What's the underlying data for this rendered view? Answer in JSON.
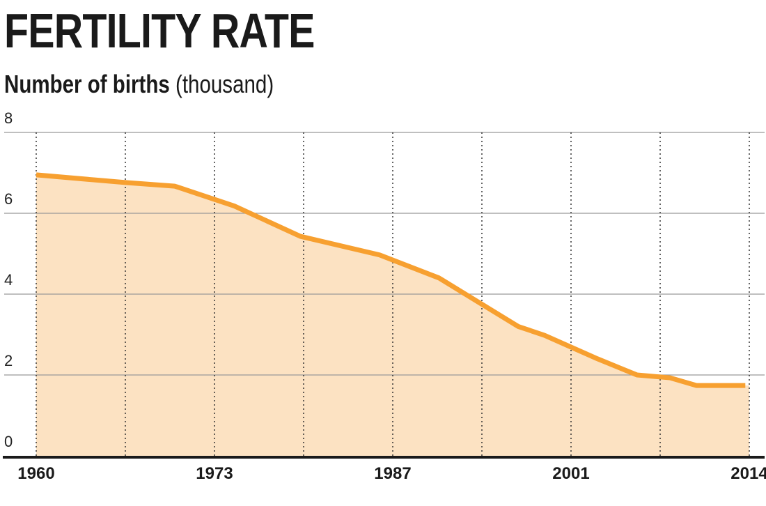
{
  "title": "FERTILITY RATE",
  "subtitle_bold": "Number of births",
  "subtitle_unit": "(thousand)",
  "chart_data": {
    "type": "area",
    "title": "FERTILITY RATE",
    "ylabel": "Number of births (thousand)",
    "xlabel": "",
    "xlim": [
      1960,
      2014
    ],
    "ylim": [
      0,
      8
    ],
    "yticks": [
      0,
      2,
      4,
      6,
      8
    ],
    "xtick_labels": [
      "1960",
      "1973",
      "1987",
      "2001",
      "2014"
    ],
    "xtick_values": [
      1960,
      1973.5,
      1987,
      2000.5,
      2014
    ],
    "vertical_gridlines": [
      1960,
      1966.75,
      1973.5,
      1980.25,
      1987,
      1993.75,
      2000.5,
      2007.25,
      2014
    ],
    "grid": true,
    "colors": {
      "line": "#f7a030",
      "fill": "#fce2c2",
      "grid": "#999999",
      "axis": "#1a1a1a"
    },
    "series": [
      {
        "x": [
          1960,
          1966.75,
          1970.5,
          1975,
          1980,
          1986,
          1990.5,
          1993.5,
          1996.5,
          1998.5,
          2002.5,
          2005.5,
          2008,
          2010,
          2013.7
        ],
        "y": [
          6.95,
          6.76,
          6.67,
          6.18,
          5.43,
          4.97,
          4.4,
          3.8,
          3.2,
          2.98,
          2.4,
          2.0,
          1.93,
          1.74,
          1.74
        ]
      }
    ]
  }
}
